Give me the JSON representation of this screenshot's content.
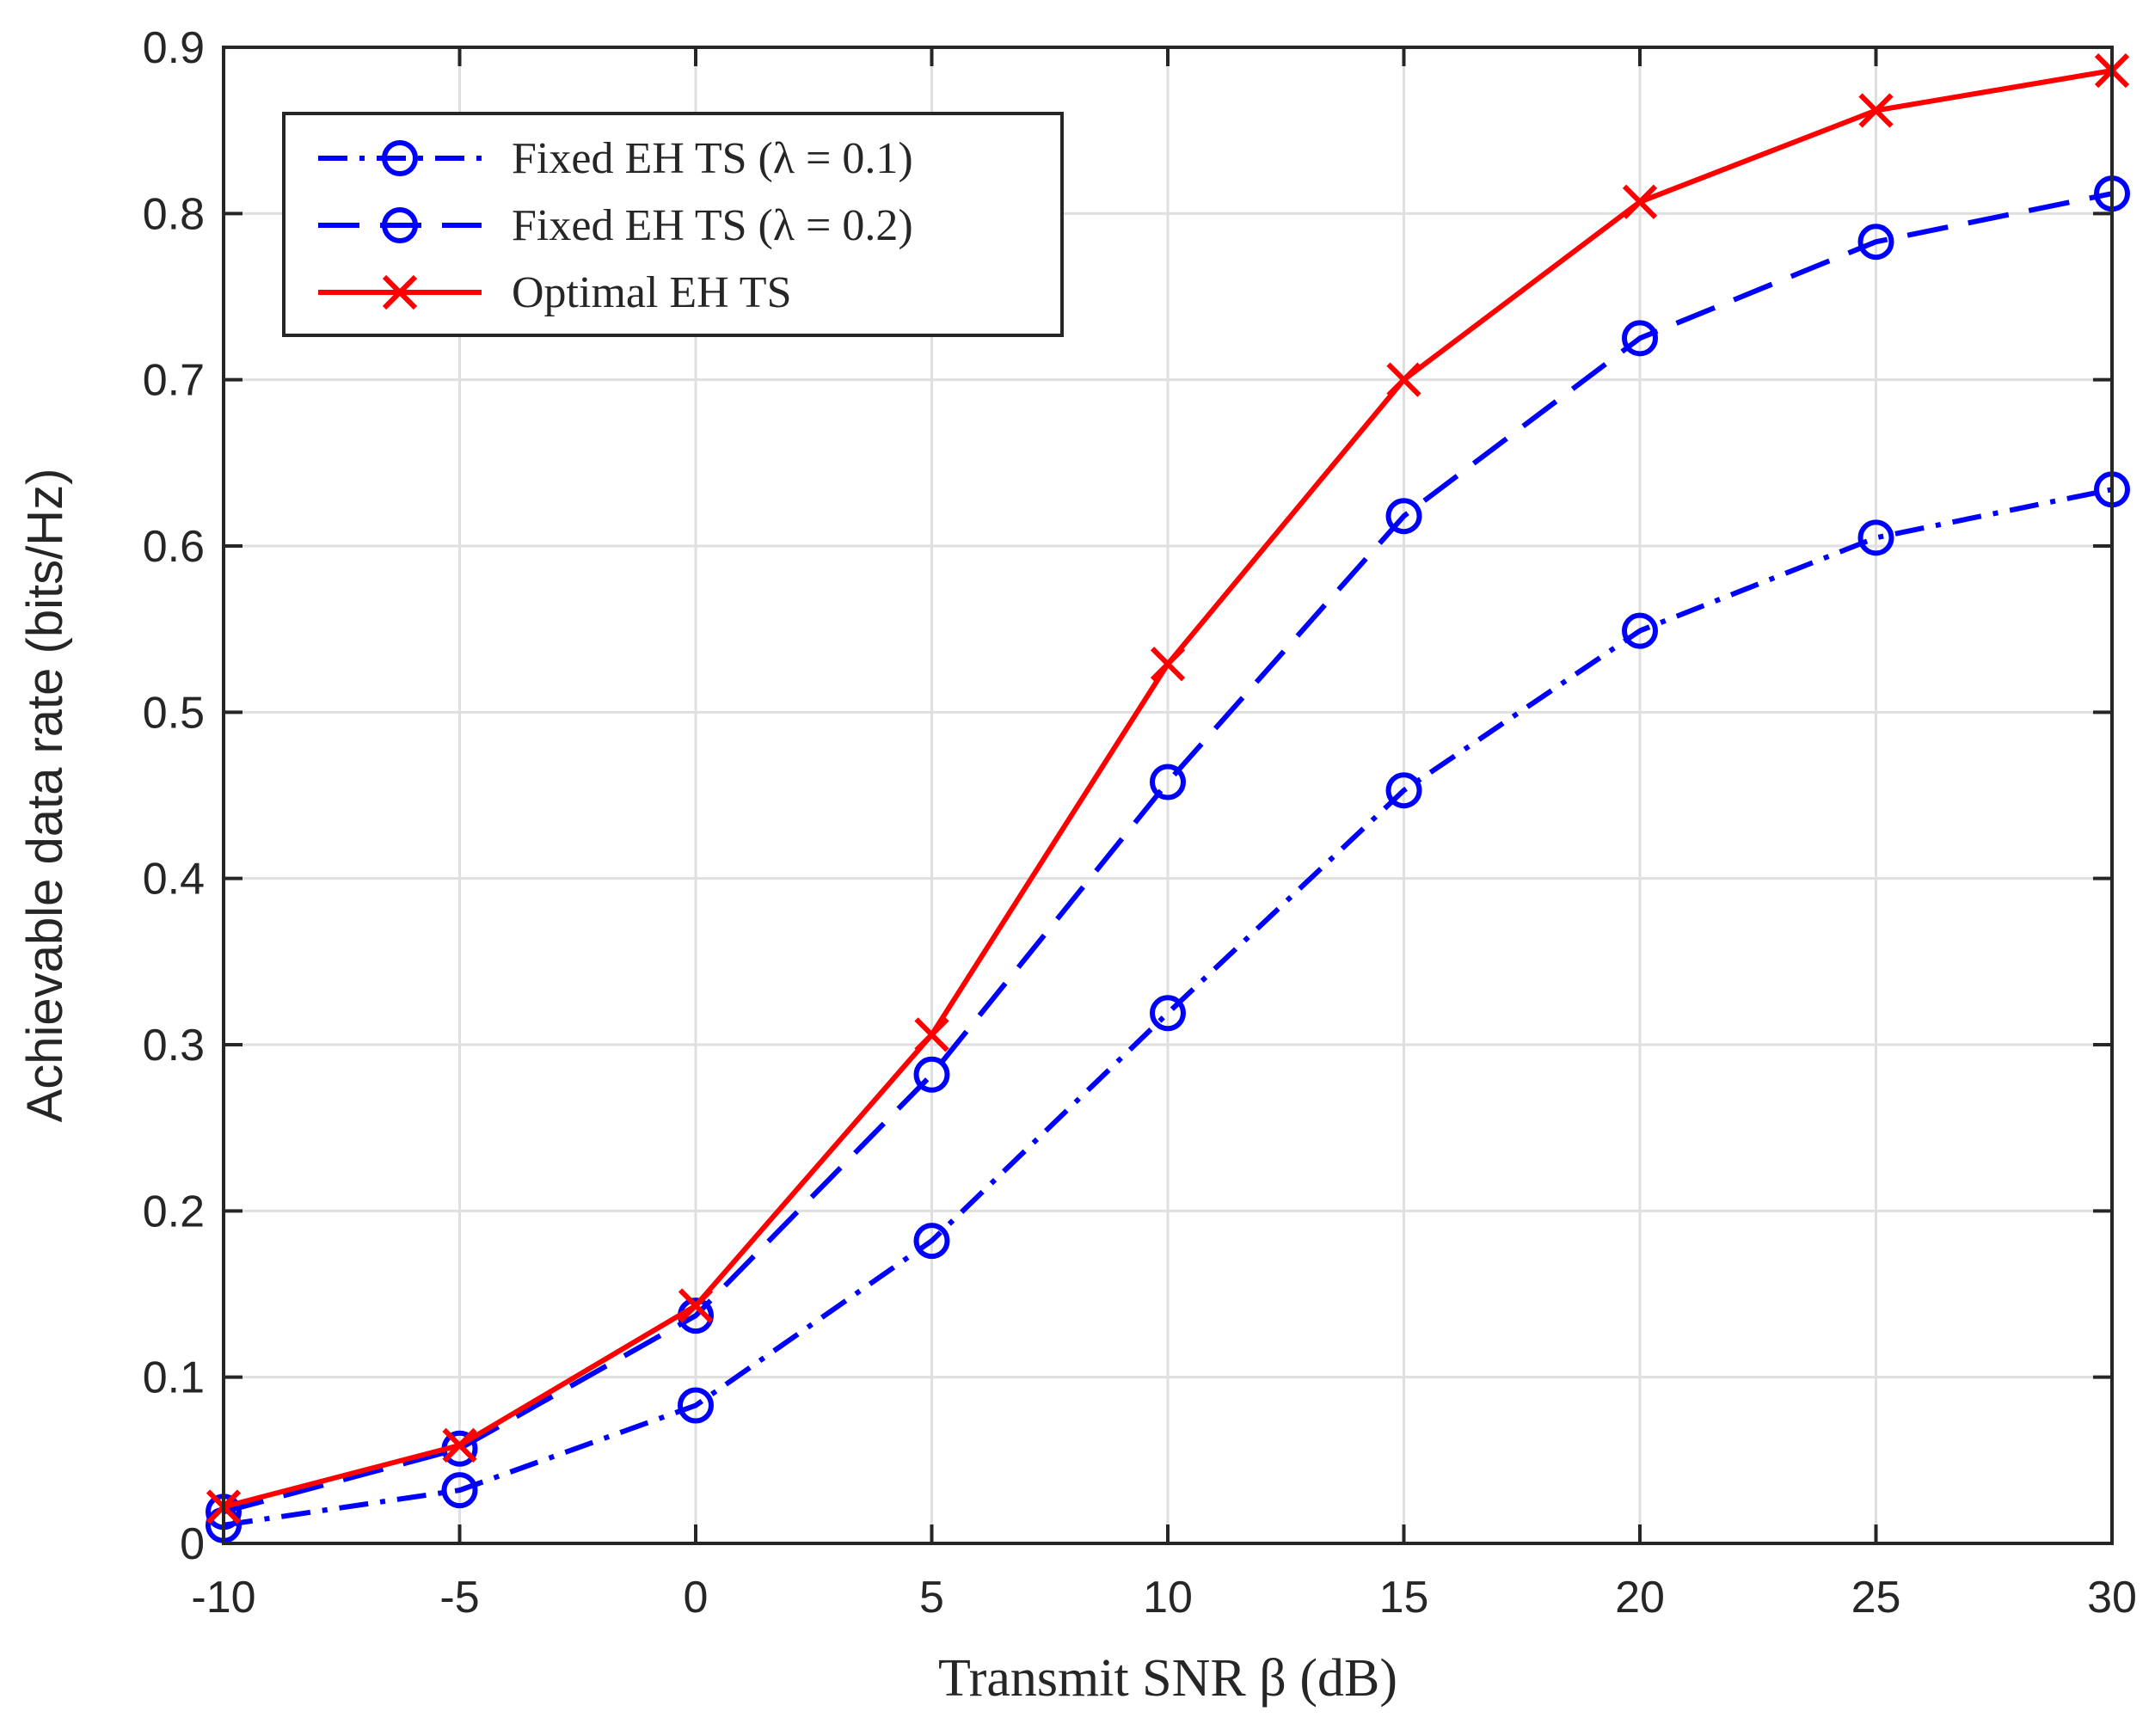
{
  "chart_data": {
    "type": "line",
    "title": "",
    "xlabel": "Transmit SNR β (dB)",
    "ylabel": "Achievable data rate (bits/Hz)",
    "x": [
      -10,
      -5,
      0,
      5,
      10,
      15,
      20,
      25,
      30
    ],
    "xlim": [
      -10,
      30
    ],
    "ylim": [
      0,
      0.9
    ],
    "xticks": [
      "-10",
      "-5",
      "0",
      "5",
      "10",
      "15",
      "20",
      "25",
      "30"
    ],
    "yticks": [
      "0",
      "0.1",
      "0.2",
      "0.3",
      "0.4",
      "0.5",
      "0.6",
      "0.7",
      "0.8",
      "0.9"
    ],
    "grid": true,
    "legend_position": "top-left",
    "series": [
      {
        "name": "Fixed EH TS (λ = 0.1)",
        "color": "#0000ff",
        "line_style": "dash-dot",
        "marker": "circle",
        "values": [
          0.011,
          0.032,
          0.083,
          0.182,
          0.319,
          0.453,
          0.549,
          0.605,
          0.634
        ]
      },
      {
        "name": "Fixed EH TS (λ = 0.2)",
        "color": "#0000ff",
        "line_style": "dashed",
        "marker": "circle",
        "values": [
          0.019,
          0.057,
          0.137,
          0.282,
          0.458,
          0.618,
          0.725,
          0.783,
          0.812
        ]
      },
      {
        "name": "Optimal EH TS",
        "color": "#ff0000",
        "line_style": "solid",
        "marker": "x",
        "values": [
          0.022,
          0.059,
          0.143,
          0.306,
          0.529,
          0.7,
          0.807,
          0.862,
          0.886
        ]
      }
    ]
  }
}
